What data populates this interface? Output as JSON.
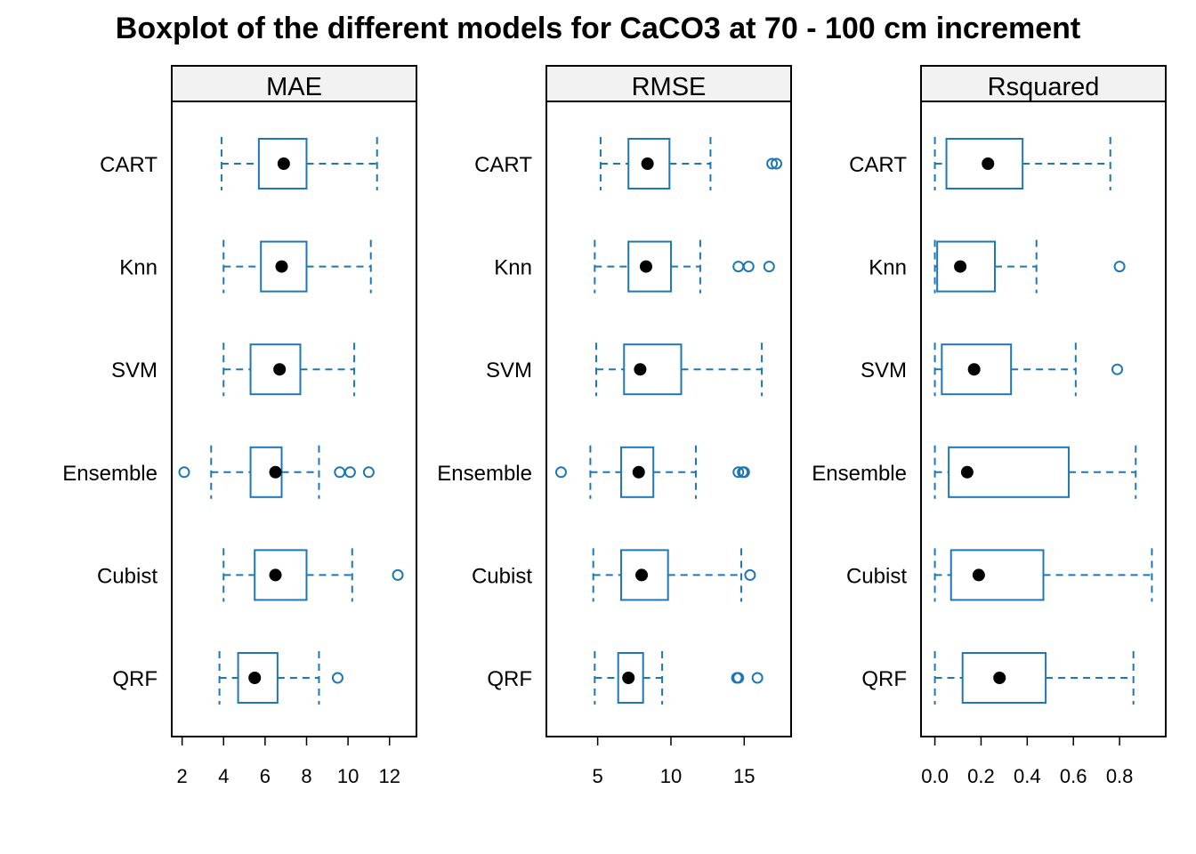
{
  "title": "Boxplot of the different models for CaCO3 at 70 - 100 cm increment",
  "colors": {
    "box": "#1f77b4",
    "median": "#000000",
    "strip": "#f2f2f2",
    "frame": "#000000"
  },
  "chart_data": [
    {
      "type": "boxplot",
      "panel": "MAE",
      "categories": [
        "CART",
        "Knn",
        "SVM",
        "Ensemble",
        "Cubist",
        "QRF"
      ],
      "xlim": [
        1.5,
        13.3
      ],
      "xticks": [
        2,
        4,
        6,
        8,
        10,
        12
      ],
      "boxes": [
        {
          "q1": 5.7,
          "median": 6.9,
          "q3": 8.0,
          "whisker_low": 3.9,
          "whisker_high": 11.4,
          "outliers": []
        },
        {
          "q1": 5.8,
          "median": 6.8,
          "q3": 8.0,
          "whisker_low": 4.0,
          "whisker_high": 11.1,
          "outliers": []
        },
        {
          "q1": 5.3,
          "median": 6.7,
          "q3": 7.7,
          "whisker_low": 4.0,
          "whisker_high": 10.3,
          "outliers": []
        },
        {
          "q1": 5.3,
          "median": 6.5,
          "q3": 6.8,
          "whisker_low": 3.4,
          "whisker_high": 8.6,
          "outliers": [
            2.1,
            9.6,
            10.1,
            11.0
          ]
        },
        {
          "q1": 5.5,
          "median": 6.5,
          "q3": 8.0,
          "whisker_low": 4.0,
          "whisker_high": 10.2,
          "outliers": [
            12.4
          ]
        },
        {
          "q1": 4.7,
          "median": 5.5,
          "q3": 6.6,
          "whisker_low": 3.8,
          "whisker_high": 8.6,
          "outliers": [
            9.5
          ]
        }
      ]
    },
    {
      "type": "boxplot",
      "panel": "RMSE",
      "categories": [
        "CART",
        "Knn",
        "SVM",
        "Ensemble",
        "Cubist",
        "QRF"
      ],
      "xlim": [
        1.5,
        18.2
      ],
      "xticks": [
        5,
        10,
        15
      ],
      "boxes": [
        {
          "q1": 7.1,
          "median": 8.4,
          "q3": 9.9,
          "whisker_low": 5.2,
          "whisker_high": 12.7,
          "outliers": [
            16.9,
            17.2
          ]
        },
        {
          "q1": 7.1,
          "median": 8.3,
          "q3": 10.0,
          "whisker_low": 4.8,
          "whisker_high": 12.0,
          "outliers": [
            14.6,
            15.3,
            16.7
          ]
        },
        {
          "q1": 6.8,
          "median": 7.9,
          "q3": 10.7,
          "whisker_low": 4.9,
          "whisker_high": 16.2,
          "outliers": []
        },
        {
          "q1": 6.6,
          "median": 7.8,
          "q3": 8.8,
          "whisker_low": 4.5,
          "whisker_high": 11.7,
          "outliers": [
            2.5,
            14.6,
            14.9,
            15.0
          ]
        },
        {
          "q1": 6.6,
          "median": 8.0,
          "q3": 9.8,
          "whisker_low": 4.7,
          "whisker_high": 14.8,
          "outliers": [
            15.4
          ]
        },
        {
          "q1": 6.4,
          "median": 7.1,
          "q3": 8.1,
          "whisker_low": 4.8,
          "whisker_high": 9.4,
          "outliers": [
            14.5,
            14.6,
            15.9
          ]
        }
      ]
    },
    {
      "type": "boxplot",
      "panel": "Rsquared",
      "categories": [
        "CART",
        "Knn",
        "SVM",
        "Ensemble",
        "Cubist",
        "QRF"
      ],
      "xlim": [
        -0.06,
        1.0
      ],
      "xticks": [
        0.0,
        0.2,
        0.4,
        0.6,
        0.8
      ],
      "tick_format": 1,
      "boxes": [
        {
          "q1": 0.05,
          "median": 0.23,
          "q3": 0.38,
          "whisker_low": 0.0,
          "whisker_high": 0.76,
          "outliers": []
        },
        {
          "q1": 0.01,
          "median": 0.11,
          "q3": 0.26,
          "whisker_low": 0.0,
          "whisker_high": 0.44,
          "outliers": [
            0.8
          ]
        },
        {
          "q1": 0.03,
          "median": 0.17,
          "q3": 0.33,
          "whisker_low": 0.0,
          "whisker_high": 0.61,
          "outliers": [
            0.79
          ]
        },
        {
          "q1": 0.06,
          "median": 0.14,
          "q3": 0.58,
          "whisker_low": 0.0,
          "whisker_high": 0.87,
          "outliers": []
        },
        {
          "q1": 0.07,
          "median": 0.19,
          "q3": 0.47,
          "whisker_low": 0.0,
          "whisker_high": 0.94,
          "outliers": []
        },
        {
          "q1": 0.12,
          "median": 0.28,
          "q3": 0.48,
          "whisker_low": 0.0,
          "whisker_high": 0.86,
          "outliers": []
        }
      ]
    }
  ]
}
